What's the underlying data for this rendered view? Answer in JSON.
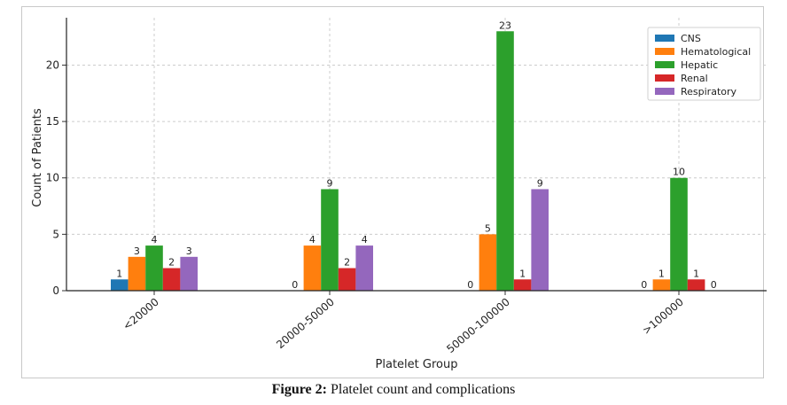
{
  "chart_data": {
    "type": "bar",
    "categories": [
      "<20000",
      "20000-50000",
      "50000-100000",
      ">100000"
    ],
    "series": [
      {
        "name": "CNS",
        "color": "#1f77b4",
        "values": [
          1,
          0,
          0,
          0
        ]
      },
      {
        "name": "Hematological",
        "color": "#ff7f0e",
        "values": [
          3,
          4,
          5,
          1
        ]
      },
      {
        "name": "Hepatic",
        "color": "#2ca02c",
        "values": [
          4,
          9,
          23,
          10
        ]
      },
      {
        "name": "Renal",
        "color": "#d62728",
        "values": [
          2,
          2,
          1,
          1
        ]
      },
      {
        "name": "Respiratory",
        "color": "#9467bd",
        "values": [
          3,
          4,
          9,
          0
        ]
      }
    ],
    "xlabel": "Platelet Group",
    "ylabel": "Count of Patients",
    "ylim": [
      0,
      24.2
    ],
    "yticks": [
      0,
      5,
      10,
      15,
      20
    ],
    "grid": true,
    "legend_position": "top-right"
  },
  "caption": {
    "label": "Figure 2:",
    "text": "Platelet count and complications"
  }
}
